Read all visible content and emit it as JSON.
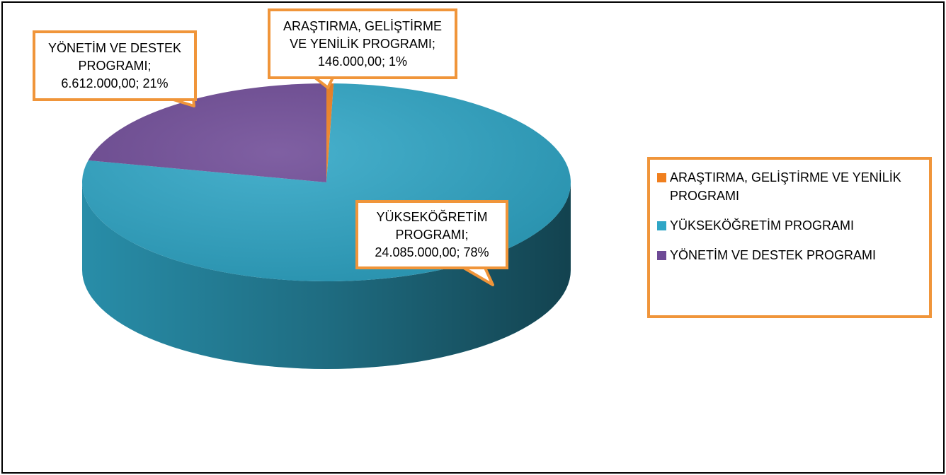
{
  "chart_data": {
    "type": "pie3d",
    "categories": [
      "ARAŞTIRMA, GELİŞTİRME VE YENİLİK PROGRAMI",
      "YÜKSEKÖĞRETİM PROGRAMI",
      "YÖNETİM VE DESTEK PROGRAMI"
    ],
    "values": [
      146000,
      24085000,
      6612000
    ],
    "value_labels": [
      "ARAŞTIRMA, GELİŞTİRME VE YENİLİK PROGRAMI; 146.000,00; 1%",
      "YÜKSEKÖĞRETİM PROGRAMI; 24.085.000,00; 78%",
      "YÖNETİM VE DESTEK PROGRAMI; 6.612.000,00; 21%"
    ],
    "colors": [
      "#f07f1e",
      "#2fa6c6",
      "#6e4a96"
    ],
    "legend": "right"
  }
}
